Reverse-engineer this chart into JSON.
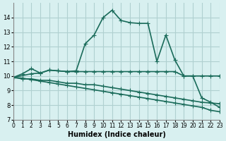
{
  "xlabel": "Humidex (Indice chaleur)",
  "bg_color": "#d8f0f0",
  "grid_color": "#b0d0d0",
  "line_color": "#1a6b5a",
  "xlim": [
    0,
    23
  ],
  "ylim": [
    7,
    15
  ],
  "yticks": [
    7,
    8,
    9,
    10,
    11,
    12,
    13,
    14
  ],
  "xticks": [
    0,
    1,
    2,
    3,
    4,
    5,
    6,
    7,
    8,
    9,
    10,
    11,
    12,
    13,
    14,
    15,
    16,
    17,
    18,
    19,
    20,
    21,
    22,
    23
  ],
  "line1_x": [
    0,
    1,
    2,
    3,
    4,
    5,
    6,
    7,
    8,
    9,
    10,
    11,
    12,
    13,
    14,
    15,
    16,
    17,
    18,
    19,
    20,
    21,
    22,
    23
  ],
  "line1_y": [
    9.9,
    10.15,
    10.5,
    10.2,
    10.4,
    10.35,
    10.3,
    10.3,
    10.3,
    10.3,
    10.3,
    10.3,
    10.3,
    10.3,
    10.3,
    10.3,
    10.3,
    10.3,
    10.3,
    10.0,
    10.0,
    10.0,
    10.0,
    10.0
  ],
  "line2_x": [
    0,
    1,
    2,
    3,
    4,
    5,
    6,
    7,
    8,
    9,
    10,
    11,
    12,
    13,
    14,
    15,
    16,
    17,
    18,
    19,
    20,
    21,
    22,
    23
  ],
  "line2_y": [
    9.9,
    9.8,
    9.8,
    9.7,
    9.7,
    9.6,
    9.5,
    9.5,
    9.4,
    9.4,
    9.3,
    9.2,
    9.1,
    9.0,
    8.9,
    8.8,
    8.7,
    8.6,
    8.5,
    8.4,
    8.3,
    8.2,
    8.15,
    8.1
  ],
  "line3_x": [
    0,
    1,
    2,
    3,
    4,
    5,
    6,
    7,
    8,
    9,
    10,
    11,
    12,
    13,
    14,
    15,
    16,
    17,
    18,
    19,
    20,
    21,
    22,
    23
  ],
  "line3_y": [
    9.9,
    9.85,
    9.75,
    9.65,
    9.55,
    9.45,
    9.35,
    9.25,
    9.15,
    9.05,
    8.95,
    8.85,
    8.75,
    8.65,
    8.55,
    8.45,
    8.35,
    8.25,
    8.15,
    8.05,
    7.95,
    7.85,
    7.65,
    7.55
  ],
  "line4_x": [
    0,
    2,
    3,
    4,
    5,
    6,
    7,
    8,
    9,
    10,
    11,
    12,
    13,
    14,
    15,
    16,
    17,
    18,
    19,
    20,
    21,
    22,
    23
  ],
  "line4_y": [
    9.9,
    10.15,
    10.2,
    10.4,
    10.35,
    10.3,
    10.35,
    12.2,
    12.8,
    14.0,
    14.5,
    13.8,
    13.65,
    13.6,
    13.6,
    11.0,
    12.8,
    11.1,
    10.0,
    10.0,
    8.5,
    8.2,
    7.85
  ],
  "marker": "+",
  "markersize": 5,
  "linewidth": 1.2
}
